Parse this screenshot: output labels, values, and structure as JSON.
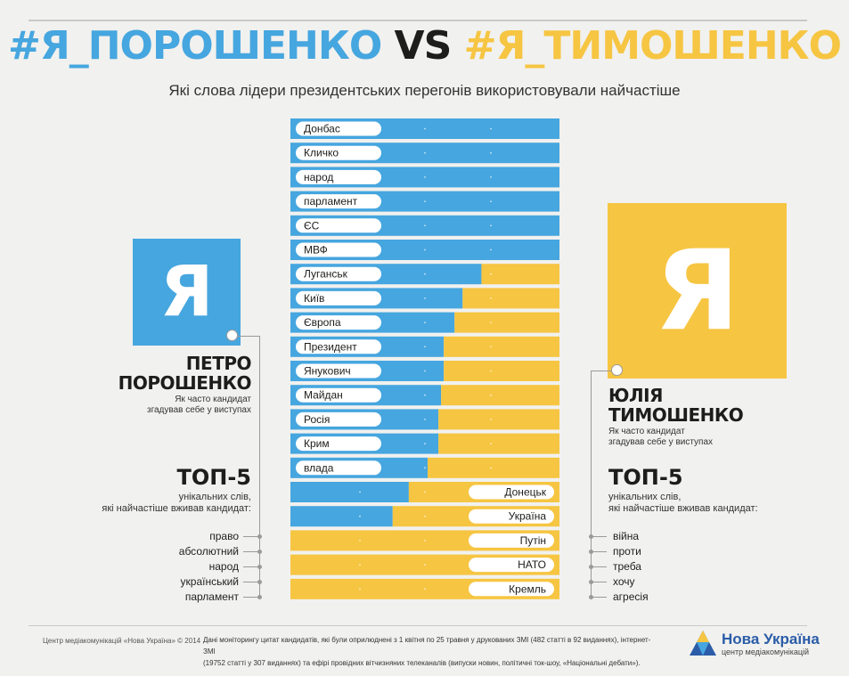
{
  "header": {
    "hashtag_left": "#Я_ПОРОШЕНКО",
    "vs": "VS",
    "hashtag_right": "#Я_ТИМОШЕНКО",
    "subtitle": "Які слова лідери президентських перегонів використовували найчастіше"
  },
  "colors": {
    "poroshenko": "#46a6df",
    "tymoshenko": "#f6c542",
    "text": "#1d1d1b"
  },
  "poroshenko": {
    "badge_letter": "Я",
    "name_line1": "ПЕТРО",
    "name_line2": "ПОРОШЕНКО",
    "self_note_line1": "Як часто кандидат",
    "self_note_line2": "згадував себе у виступах",
    "top5_title": "ТОП-5",
    "top5_sub_line1": "унікальних слів,",
    "top5_sub_line2": "які найчастіше вживав кандидат:",
    "top5_words": [
      "право",
      "абсолютний",
      "народ",
      "український",
      "парламент"
    ]
  },
  "tymoshenko": {
    "badge_letter": "Я",
    "name_line1": "ЮЛІЯ",
    "name_line2": "ТИМОШЕНКО",
    "self_note_line1": "Як часто кандидат",
    "self_note_line2": "згадував себе у виступах",
    "top5_title": "ТОП-5",
    "top5_sub_line1": "унікальних слів,",
    "top5_sub_line2": "які найчастіше вживав кандидат:",
    "top5_words": [
      "війна",
      "проти",
      "треба",
      "хочу",
      "агресія"
    ]
  },
  "chart_data": {
    "type": "bar",
    "stacked": true,
    "orientation": "horizontal",
    "categories": [
      "Донбас",
      "Кличко",
      "народ",
      "парламент",
      "ЄС",
      "МВФ",
      "Луганськ",
      "Київ",
      "Європа",
      "Президент",
      "Янукович",
      "Майдан",
      "Росія",
      "Крим",
      "влада",
      "Донецьк",
      "Україна",
      "Путін",
      "НАТО",
      "Кремль"
    ],
    "series": [
      {
        "values": [
          100,
          100,
          100,
          100,
          100,
          100,
          71,
          64,
          61,
          57,
          57,
          56,
          55,
          55,
          51,
          44,
          38,
          0,
          0,
          0
        ]
      },
      {
        "values": [
          0,
          0,
          0,
          0,
          0,
          0,
          29,
          36,
          39,
          43,
          43,
          44,
          45,
          45,
          49,
          56,
          62,
          100,
          100,
          100
        ]
      }
    ],
    "xlim": [
      0,
      100
    ],
    "label_side": [
      "left",
      "left",
      "left",
      "left",
      "left",
      "left",
      "left",
      "left",
      "left",
      "left",
      "left",
      "left",
      "left",
      "left",
      "left",
      "right",
      "right",
      "right",
      "right",
      "right"
    ]
  },
  "footer": {
    "credit": "Центр медіакомунікацій «Нова Україна» © 2014",
    "note_line1": "Дані моніторингу цитат кандидатів, які були оприлюднені з 1 квітня по 25 травня у друкованих ЗМІ (482 статті в 92 виданнях), інтернет-ЗМІ",
    "note_line2": "(19752 статті у 307 виданнях) та ефірі провідних вітчизняних телеканалів (випуски новин, політичні ток-шоу, «Національні дебати»).",
    "logo_name": "Нова Україна",
    "logo_sub": "центр медіакомунікацій"
  }
}
